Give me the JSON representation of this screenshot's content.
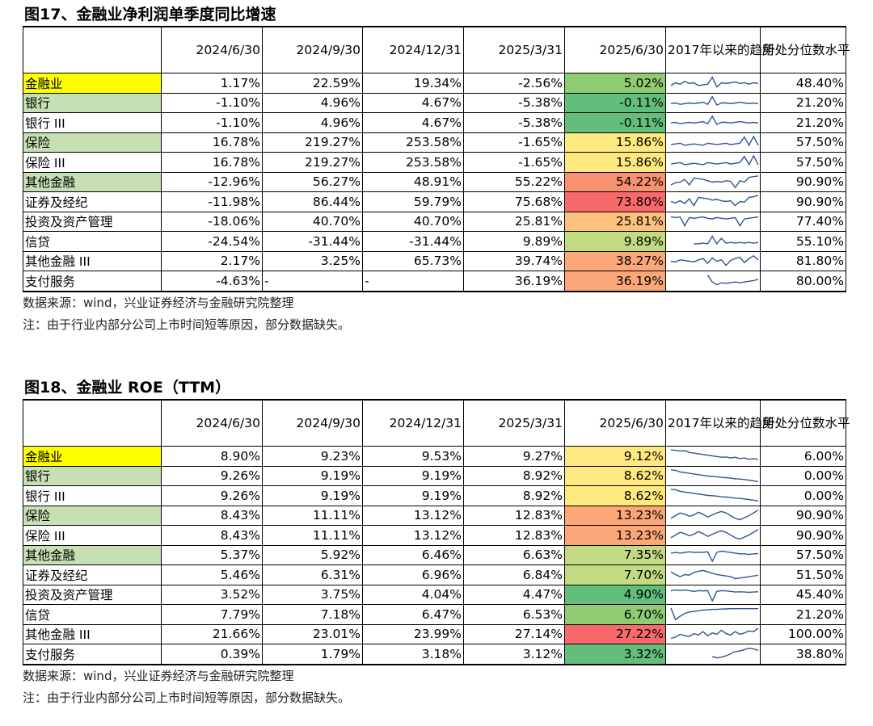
{
  "fig17": {
    "title": "图17、金融业净利润单季度同比增速",
    "headers": [
      "",
      "2024/6/30",
      "2024/9/30",
      "2024/12/31",
      "2025/3/31",
      "2025/6/30",
      "2017年以来的趋势",
      "所处分位数水平"
    ],
    "rows": [
      {
        "name": "金融业",
        "name_bg": "#ffff00",
        "v": [
          "1.17%",
          "22.59%",
          "19.34%",
          "-2.56%",
          "5.02%"
        ],
        "latest_bg": "#8fcb72",
        "pct": "48.40%",
        "trend": [
          0.3,
          0.5,
          0.4,
          0.6,
          0.45,
          0.5,
          0.3,
          0.35,
          0.4,
          0.9,
          0.2,
          0.5,
          0.45,
          0.5,
          0.55,
          0.45,
          0.5,
          0.4,
          0.5,
          0.45
        ]
      },
      {
        "name": "银行",
        "name_bg": "#c6e0b4",
        "v": [
          "-1.10%",
          "4.96%",
          "4.67%",
          "-5.38%",
          "-0.11%"
        ],
        "latest_bg": "#63be7b",
        "pct": "21.20%",
        "trend": [
          0.45,
          0.5,
          0.4,
          0.45,
          0.5,
          0.45,
          0.5,
          0.55,
          0.4,
          0.95,
          0.35,
          0.5,
          0.5,
          0.45,
          0.5,
          0.55,
          0.5,
          0.45,
          0.5,
          0.45
        ]
      },
      {
        "name": "银行 III",
        "name_bg": "",
        "v": [
          "-1.10%",
          "4.96%",
          "4.67%",
          "-5.38%",
          "-0.11%"
        ],
        "latest_bg": "#63be7b",
        "pct": "21.20%",
        "trend": [
          0.45,
          0.5,
          0.4,
          0.45,
          0.5,
          0.45,
          0.5,
          0.55,
          0.4,
          0.95,
          0.35,
          0.5,
          0.5,
          0.45,
          0.5,
          0.55,
          0.5,
          0.45,
          0.5,
          0.45
        ]
      },
      {
        "name": "保险",
        "name_bg": "#c6e0b4",
        "v": [
          "16.78%",
          "219.27%",
          "253.58%",
          "-1.65%",
          "15.86%"
        ],
        "latest_bg": "#fde97f",
        "pct": "57.50%",
        "trend": [
          0.35,
          0.4,
          0.45,
          0.3,
          0.35,
          0.4,
          0.35,
          0.3,
          0.45,
          0.4,
          0.35,
          0.4,
          0.45,
          0.35,
          0.4,
          0.45,
          0.9,
          0.3,
          0.95,
          0.3
        ]
      },
      {
        "name": "保险 III",
        "name_bg": "",
        "v": [
          "16.78%",
          "219.27%",
          "253.58%",
          "-1.65%",
          "15.86%"
        ],
        "latest_bg": "#fde97f",
        "pct": "57.50%",
        "trend": [
          0.35,
          0.4,
          0.45,
          0.3,
          0.35,
          0.4,
          0.35,
          0.3,
          0.45,
          0.4,
          0.35,
          0.4,
          0.45,
          0.35,
          0.4,
          0.45,
          0.9,
          0.3,
          0.95,
          0.3
        ]
      },
      {
        "name": "其他金融",
        "name_bg": "#c6e0b4",
        "v": [
          "-12.96%",
          "56.27%",
          "48.91%",
          "55.22%",
          "54.22%"
        ],
        "latest_bg": "#f9906f",
        "pct": "90.90%",
        "trend": [
          0.3,
          0.45,
          0.5,
          0.7,
          0.3,
          0.8,
          0.75,
          0.7,
          0.6,
          0.5,
          0.55,
          0.5,
          0.6,
          0.55,
          0.1,
          0.6,
          0.5,
          0.85,
          0.9,
          0.95
        ]
      },
      {
        "name": "证券及经纪",
        "name_bg": "",
        "v": [
          "-11.98%",
          "86.44%",
          "59.79%",
          "75.68%",
          "73.80%"
        ],
        "latest_bg": "#f8696b",
        "pct": "90.90%",
        "trend": [
          0.5,
          0.4,
          0.55,
          0.35,
          0.7,
          0.2,
          0.8,
          0.75,
          0.7,
          0.6,
          0.65,
          0.55,
          0.5,
          0.55,
          0.2,
          0.5,
          0.45,
          0.8,
          0.85,
          0.95
        ]
      },
      {
        "name": "投资及资产管理",
        "name_bg": "",
        "v": [
          "-18.06%",
          "40.70%",
          "40.70%",
          "25.81%",
          "25.81%"
        ],
        "latest_bg": "#fcc17c",
        "pct": "77.40%",
        "trend": [
          0.85,
          0.8,
          0.85,
          0.2,
          0.8,
          0.75,
          0.8,
          0.85,
          0.75,
          0.7,
          0.8,
          0.75,
          0.7,
          0.75,
          0.8,
          0.2,
          0.7,
          0.75,
          0.8,
          0.85
        ]
      },
      {
        "name": "信贷",
        "name_bg": "",
        "v": [
          "-24.54%",
          "-31.44%",
          "-31.44%",
          "9.89%",
          "9.89%"
        ],
        "latest_bg": "#c2da81",
        "pct": "55.10%",
        "trend": [
          null,
          null,
          null,
          null,
          null,
          0.3,
          0.3,
          0.35,
          0.3,
          0.85,
          0.3,
          0.7,
          0.35,
          0.4,
          0.35,
          0.4,
          0.35,
          0.4,
          0.35,
          0.4
        ]
      },
      {
        "name": "其他金融 III",
        "name_bg": "",
        "v": [
          "2.17%",
          "3.25%",
          "65.73%",
          "39.74%",
          "38.27%"
        ],
        "latest_bg": "#fba777",
        "pct": "81.80%",
        "trend": [
          0.5,
          0.45,
          0.6,
          0.55,
          0.5,
          0.45,
          0.6,
          0.7,
          0.35,
          0.75,
          0.5,
          0.6,
          0.2,
          0.55,
          0.7,
          0.8,
          0.4,
          0.7,
          0.9,
          0.6
        ]
      },
      {
        "name": "支付服务",
        "name_bg": "",
        "v": [
          "-4.63%",
          "-",
          "-",
          "36.19%",
          "36.19%"
        ],
        "latest_bg": "#fba777",
        "pct": "80.00%",
        "trend": [
          null,
          null,
          null,
          null,
          null,
          null,
          null,
          null,
          0.9,
          0.4,
          0.2,
          0.35,
          0.3,
          0.35,
          0.4,
          0.35,
          0.4,
          0.45,
          0.5,
          0.6
        ]
      }
    ],
    "source": "数据来源：wind，兴业证券经济与金融研究院整理",
    "note": "注：由于行业内部分公司上市时间短等原因，部分数据缺失。"
  },
  "fig18": {
    "title": "图18、金融业 ROE（TTM）",
    "headers": [
      "",
      "2024/6/30",
      "2024/9/30",
      "2024/12/31",
      "2025/3/31",
      "2025/6/30",
      "2017年以来的趋势",
      "所处分位数水平"
    ],
    "rows": [
      {
        "name": "金融业",
        "name_bg": "#ffff00",
        "v": [
          "8.90%",
          "9.23%",
          "9.53%",
          "9.27%",
          "9.12%"
        ],
        "latest_bg": "#fde97f",
        "pct": "6.00%",
        "trend": [
          0.95,
          0.9,
          0.85,
          0.88,
          0.75,
          0.7,
          0.65,
          0.6,
          0.55,
          0.5,
          0.45,
          0.4,
          0.42,
          0.35,
          0.4,
          0.3,
          0.35,
          0.25,
          0.3,
          0.25
        ]
      },
      {
        "name": "银行",
        "name_bg": "#c6e0b4",
        "v": [
          "9.26%",
          "9.19%",
          "9.19%",
          "8.92%",
          "8.62%"
        ],
        "latest_bg": "#fde97f",
        "pct": "0.00%",
        "trend": [
          0.95,
          0.92,
          0.8,
          0.75,
          0.7,
          0.65,
          0.6,
          0.55,
          0.5,
          0.48,
          0.45,
          0.4,
          0.38,
          0.35,
          0.3,
          0.28,
          0.25,
          0.2,
          0.15,
          0.1
        ]
      },
      {
        "name": "银行 III",
        "name_bg": "",
        "v": [
          "9.26%",
          "9.19%",
          "9.19%",
          "8.92%",
          "8.62%"
        ],
        "latest_bg": "#fde97f",
        "pct": "0.00%",
        "trend": [
          0.95,
          0.92,
          0.8,
          0.75,
          0.7,
          0.65,
          0.6,
          0.55,
          0.5,
          0.48,
          0.45,
          0.4,
          0.38,
          0.35,
          0.3,
          0.28,
          0.25,
          0.2,
          0.15,
          0.1
        ]
      },
      {
        "name": "保险",
        "name_bg": "#c6e0b4",
        "v": [
          "8.43%",
          "11.11%",
          "13.12%",
          "12.83%",
          "13.23%"
        ],
        "latest_bg": "#fba777",
        "pct": "90.90%",
        "trend": [
          0.3,
          0.5,
          0.7,
          0.6,
          0.45,
          0.55,
          0.75,
          0.6,
          0.4,
          0.55,
          0.7,
          0.8,
          0.7,
          0.5,
          0.3,
          0.2,
          0.35,
          0.5,
          0.7,
          0.9
        ]
      },
      {
        "name": "保险 III",
        "name_bg": "",
        "v": [
          "8.43%",
          "11.11%",
          "13.12%",
          "12.83%",
          "13.23%"
        ],
        "latest_bg": "#fba777",
        "pct": "90.90%",
        "trend": [
          0.3,
          0.5,
          0.7,
          0.6,
          0.45,
          0.55,
          0.75,
          0.6,
          0.4,
          0.55,
          0.7,
          0.8,
          0.7,
          0.5,
          0.3,
          0.2,
          0.35,
          0.5,
          0.7,
          0.9
        ]
      },
      {
        "name": "其他金融",
        "name_bg": "#c6e0b4",
        "v": [
          "5.37%",
          "5.92%",
          "6.46%",
          "6.63%",
          "7.35%"
        ],
        "latest_bg": "#c2da81",
        "pct": "57.50%",
        "trend": [
          0.65,
          0.7,
          0.65,
          0.7,
          0.75,
          0.7,
          0.72,
          0.7,
          0.75,
          0.05,
          0.7,
          0.8,
          0.75,
          0.7,
          0.65,
          0.6,
          0.6,
          0.55,
          0.6,
          0.62
        ]
      },
      {
        "name": "证券及经纪",
        "name_bg": "",
        "v": [
          "5.46%",
          "6.31%",
          "6.96%",
          "6.84%",
          "7.70%"
        ],
        "latest_bg": "#c2da81",
        "pct": "51.50%",
        "trend": [
          0.7,
          0.5,
          0.35,
          0.5,
          0.45,
          0.65,
          0.75,
          0.8,
          0.7,
          0.6,
          0.5,
          0.45,
          0.4,
          0.35,
          0.2,
          0.25,
          0.3,
          0.35,
          0.4,
          0.45
        ]
      },
      {
        "name": "投资及资产管理",
        "name_bg": "",
        "v": [
          "3.52%",
          "3.75%",
          "4.04%",
          "4.47%",
          "4.90%"
        ],
        "latest_bg": "#63be7b",
        "pct": "45.40%",
        "trend": [
          0.8,
          0.85,
          0.8,
          0.85,
          0.8,
          0.75,
          0.8,
          0.78,
          0.8,
          0.05,
          0.75,
          0.8,
          0.78,
          0.75,
          0.7,
          0.72,
          0.7,
          0.68,
          0.7,
          0.72
        ]
      },
      {
        "name": "信贷",
        "name_bg": "",
        "v": [
          "7.79%",
          "7.18%",
          "6.47%",
          "6.53%",
          "6.70%"
        ],
        "latest_bg": "#8fcb72",
        "pct": "21.20%",
        "trend": [
          0.95,
          0.1,
          0.35,
          0.55,
          0.65,
          0.7,
          0.75,
          0.8,
          0.82,
          0.85,
          0.85,
          0.87,
          0.88,
          0.9,
          0.9,
          0.9,
          0.9,
          0.9,
          0.9,
          0.9
        ]
      },
      {
        "name": "其他金融 III",
        "name_bg": "",
        "v": [
          "21.66%",
          "23.01%",
          "23.99%",
          "27.14%",
          "27.22%"
        ],
        "latest_bg": "#f8696b",
        "pct": "100.00%",
        "trend": [
          0.2,
          0.3,
          0.5,
          0.4,
          0.35,
          0.55,
          0.45,
          0.7,
          0.4,
          0.6,
          0.5,
          0.8,
          0.55,
          0.45,
          0.7,
          0.5,
          0.6,
          0.75,
          0.7,
          0.95
        ]
      },
      {
        "name": "支付服务",
        "name_bg": "",
        "v": [
          "0.39%",
          "1.79%",
          "3.18%",
          "3.12%",
          "3.32%"
        ],
        "latest_bg": "#63be7b",
        "pct": "38.80%",
        "trend": [
          null,
          null,
          null,
          null,
          null,
          null,
          null,
          null,
          null,
          0.3,
          0.2,
          0.25,
          0.35,
          0.5,
          0.65,
          0.7,
          0.8,
          0.9,
          0.85,
          0.75
        ]
      }
    ],
    "source": "数据来源：wind，兴业证券经济与金融研究院整理",
    "note": "注：由于行业内部分公司上市时间短等原因，部分数据缺失。"
  },
  "colors": {
    "sparkline": "#2f5597"
  }
}
